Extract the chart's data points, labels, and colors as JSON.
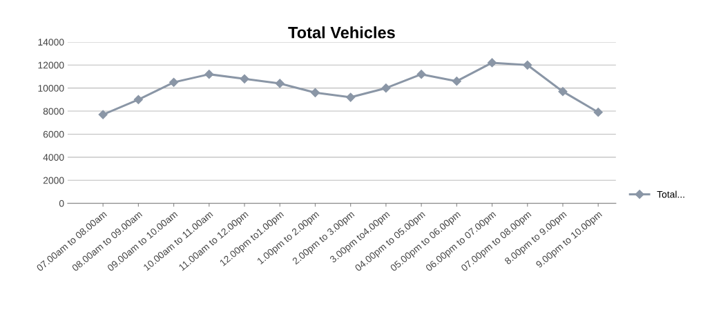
{
  "chart_data": {
    "type": "line",
    "title": "Total Vehicles",
    "categories": [
      "07.00am to 08.00am",
      "08.00am to 09.00am",
      "09.00am to 10.00am",
      "10.00am to 11.00am",
      "11.00am to 12.00pm",
      "12.00pm to1.00pm",
      "1.00pm to 2.00pm",
      "2.00pm to 3.00pm",
      "3.00pm to4.00pm",
      "04.00pm to 05.00pm",
      "05.00pm to 06.00pm",
      "06.00pm to 07.00pm",
      "07.00pm to 08.00pm",
      "8.00pm to 9.00pm",
      "9.00pm to 10.00pm"
    ],
    "series": [
      {
        "name": "Total...",
        "color": "#8a96a6",
        "values": [
          7700,
          9000,
          10500,
          11200,
          10800,
          10400,
          9600,
          9200,
          10000,
          11200,
          10600,
          12200,
          12000,
          9700,
          7900
        ]
      }
    ],
    "ylim": [
      0,
      14000
    ],
    "yticks": [
      0,
      2000,
      4000,
      6000,
      8000,
      10000,
      12000,
      14000
    ],
    "grid": "y",
    "legend": "right",
    "marker": "diamond",
    "line_style": "solid"
  }
}
